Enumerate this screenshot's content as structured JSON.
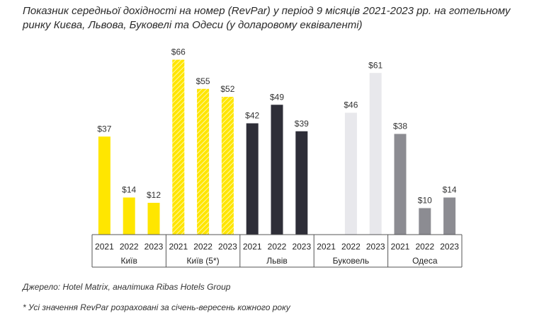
{
  "chart_data": {
    "type": "bar",
    "title": "Показник середньої дохідності на номер (RevPar) у період 9 місяців 2021-2023 рр. на готельному ринку Києва, Львова, Буковелі та Одеси (у доларовому еквіваленті)",
    "ylabel": "",
    "ylim": [
      0,
      70
    ],
    "grid": false,
    "legend": "none",
    "groups": [
      {
        "name": "Київ",
        "style": "yellow",
        "bars": [
          {
            "year": "2021",
            "value": 37,
            "label": "$37"
          },
          {
            "year": "2022",
            "value": 14,
            "label": "$14"
          },
          {
            "year": "2023",
            "value": 12,
            "label": "$12"
          }
        ]
      },
      {
        "name": "Київ (5*)",
        "style": "yellow-hatched",
        "bars": [
          {
            "year": "2021",
            "value": 66,
            "label": "$66"
          },
          {
            "year": "2022",
            "value": 55,
            "label": "$55"
          },
          {
            "year": "2023",
            "value": 52,
            "label": "$52"
          }
        ]
      },
      {
        "name": "Львів",
        "style": "dark",
        "bars": [
          {
            "year": "2021",
            "value": 42,
            "label": "$42"
          },
          {
            "year": "2022",
            "value": 49,
            "label": "$49"
          },
          {
            "year": "2023",
            "value": 39,
            "label": "$39"
          }
        ]
      },
      {
        "name": "Буковель",
        "style": "light",
        "bars": [
          {
            "year": "2021",
            "value": null,
            "label": ""
          },
          {
            "year": "2022",
            "value": 46,
            "label": "$46"
          },
          {
            "year": "2023",
            "value": 61,
            "label": "$61"
          }
        ]
      },
      {
        "name": "Одеса",
        "style": "gray",
        "bars": [
          {
            "year": "2021",
            "value": 38,
            "label": "$38"
          },
          {
            "year": "2022",
            "value": 10,
            "label": "$10"
          },
          {
            "year": "2023",
            "value": 14,
            "label": "$14"
          }
        ]
      }
    ],
    "colors": {
      "yellow": "#ffe600",
      "yellow-hatched": "#fff066",
      "dark": "#2e2e38",
      "light": "#e8e8ec",
      "gray": "#8c8c92"
    }
  },
  "source": "Джерело: Hotel Matrix, аналітика Ribas Hotels Group",
  "footnote": "* Усі значення RevPar розраховані за січень-вересень кожного року"
}
